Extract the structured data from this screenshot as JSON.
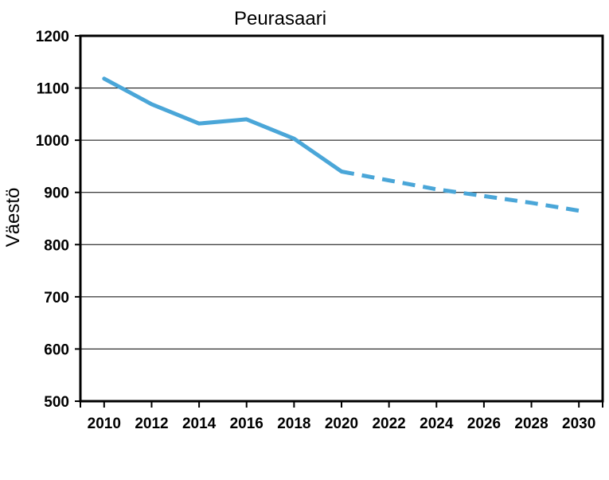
{
  "chart_data": {
    "type": "line",
    "title": "Peurasaari",
    "xlabel": "",
    "ylabel": "Väestö",
    "xlim": [
      2010,
      2030
    ],
    "ylim": [
      500,
      1200
    ],
    "yticks": [
      500,
      600,
      700,
      800,
      900,
      1000,
      1100,
      1200
    ],
    "xticks": [
      2010,
      2012,
      2014,
      2016,
      2018,
      2020,
      2022,
      2024,
      2026,
      2028,
      2030
    ],
    "grid": true,
    "series": [
      {
        "style": "solid",
        "color": "#4aa6d8",
        "x": [
          2010,
          2012,
          2014,
          2016,
          2018,
          2020
        ],
        "y": [
          1118,
          1069,
          1032,
          1040,
          1003,
          940
        ]
      },
      {
        "style": "dashed",
        "color": "#4aa6d8",
        "x": [
          2020,
          2022,
          2024,
          2026,
          2028,
          2030
        ],
        "y": [
          940,
          923,
          906,
          893,
          880,
          865
        ]
      }
    ]
  }
}
